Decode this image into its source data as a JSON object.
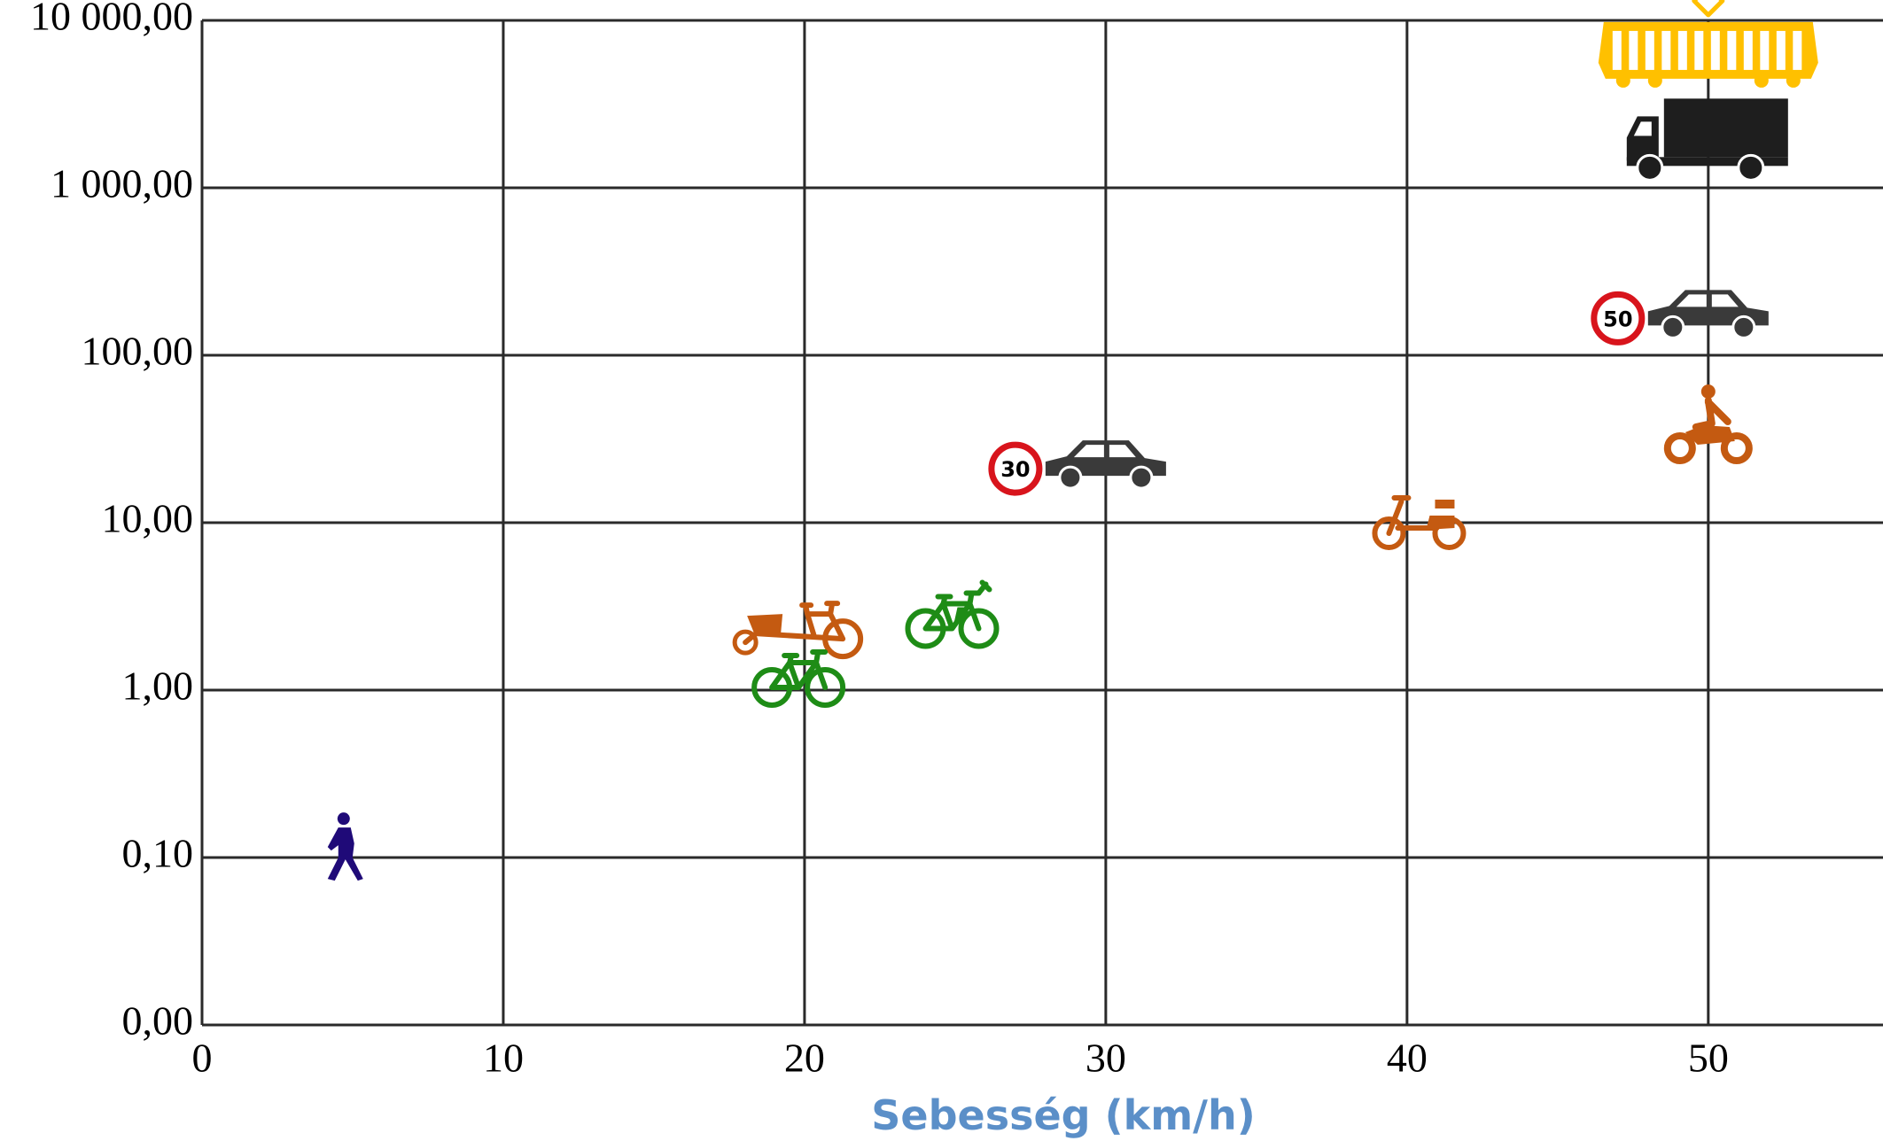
{
  "chart_data": {
    "type": "scatter",
    "x_label": "Sebesség (km/h)",
    "x": [
      4.7,
      19.8,
      19.8,
      24.9,
      30,
      40.4,
      50,
      50,
      50,
      50
    ],
    "values": [
      0.11,
      2.4,
      1.2,
      2.7,
      21,
      10,
      33,
      166,
      1900,
      6300
    ],
    "colors": [
      "#1f0a78",
      "#c45a11",
      "#1e8c16",
      "#1e8c16",
      "#3a3a3a",
      "#c45a11",
      "#c45a11",
      "#3a3a3a",
      "#1e1e1e",
      "#ffc000"
    ],
    "markers": [
      "pedestrian",
      "cargo-bike",
      "bicycle",
      "e-bike",
      "car",
      "moped",
      "motorcycle",
      "car",
      "truck",
      "tram"
    ],
    "point_labels": [
      null,
      null,
      null,
      null,
      "30",
      null,
      null,
      "50",
      null,
      null
    ],
    "xlim": [
      0,
      55.8
    ],
    "xticks": [
      0,
      10,
      20,
      30,
      40,
      50
    ],
    "ylim": [
      0.01,
      10000
    ],
    "log_y": true,
    "grid": true,
    "yticks": [
      {
        "value": 0.01,
        "label": "0,00"
      },
      {
        "value": 0.1,
        "label": "0,10"
      },
      {
        "value": 1,
        "label": "1,00"
      },
      {
        "value": 10,
        "label": "10,00"
      },
      {
        "value": 100,
        "label": "100,00"
      },
      {
        "value": 1000,
        "label": "1 000,00"
      },
      {
        "value": 10000,
        "label": "10 000,00"
      }
    ]
  }
}
